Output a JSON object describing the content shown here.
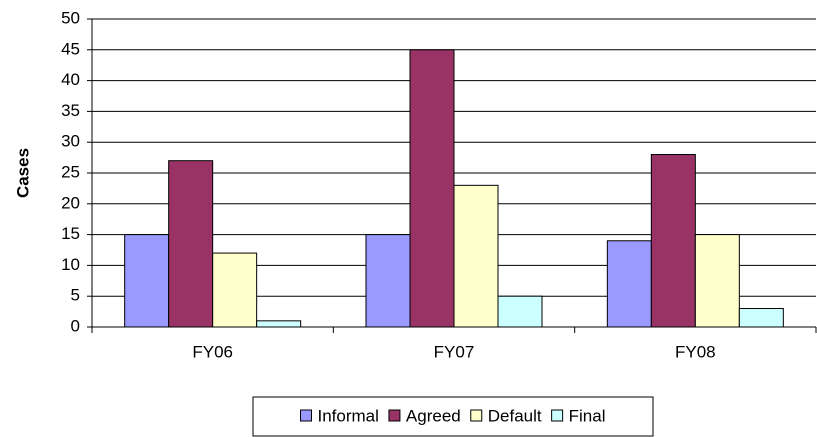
{
  "chart_data": {
    "type": "bar",
    "y_label": "Cases",
    "categories": [
      "FY06",
      "FY07",
      "FY08"
    ],
    "series": [
      {
        "name": "Informal",
        "color": "#9999ff",
        "values": [
          15,
          15,
          14
        ]
      },
      {
        "name": "Agreed",
        "color": "#993366",
        "values": [
          27,
          45,
          28
        ]
      },
      {
        "name": "Default",
        "color": "#ffffcc",
        "values": [
          12,
          23,
          15
        ]
      },
      {
        "name": "Final",
        "color": "#ccffff",
        "values": [
          1,
          5,
          3
        ]
      }
    ],
    "ylim": [
      0,
      50
    ],
    "yticks": [
      0,
      5,
      10,
      15,
      20,
      25,
      30,
      35,
      40,
      45,
      50
    ],
    "grid": true,
    "legend": "bottom"
  }
}
